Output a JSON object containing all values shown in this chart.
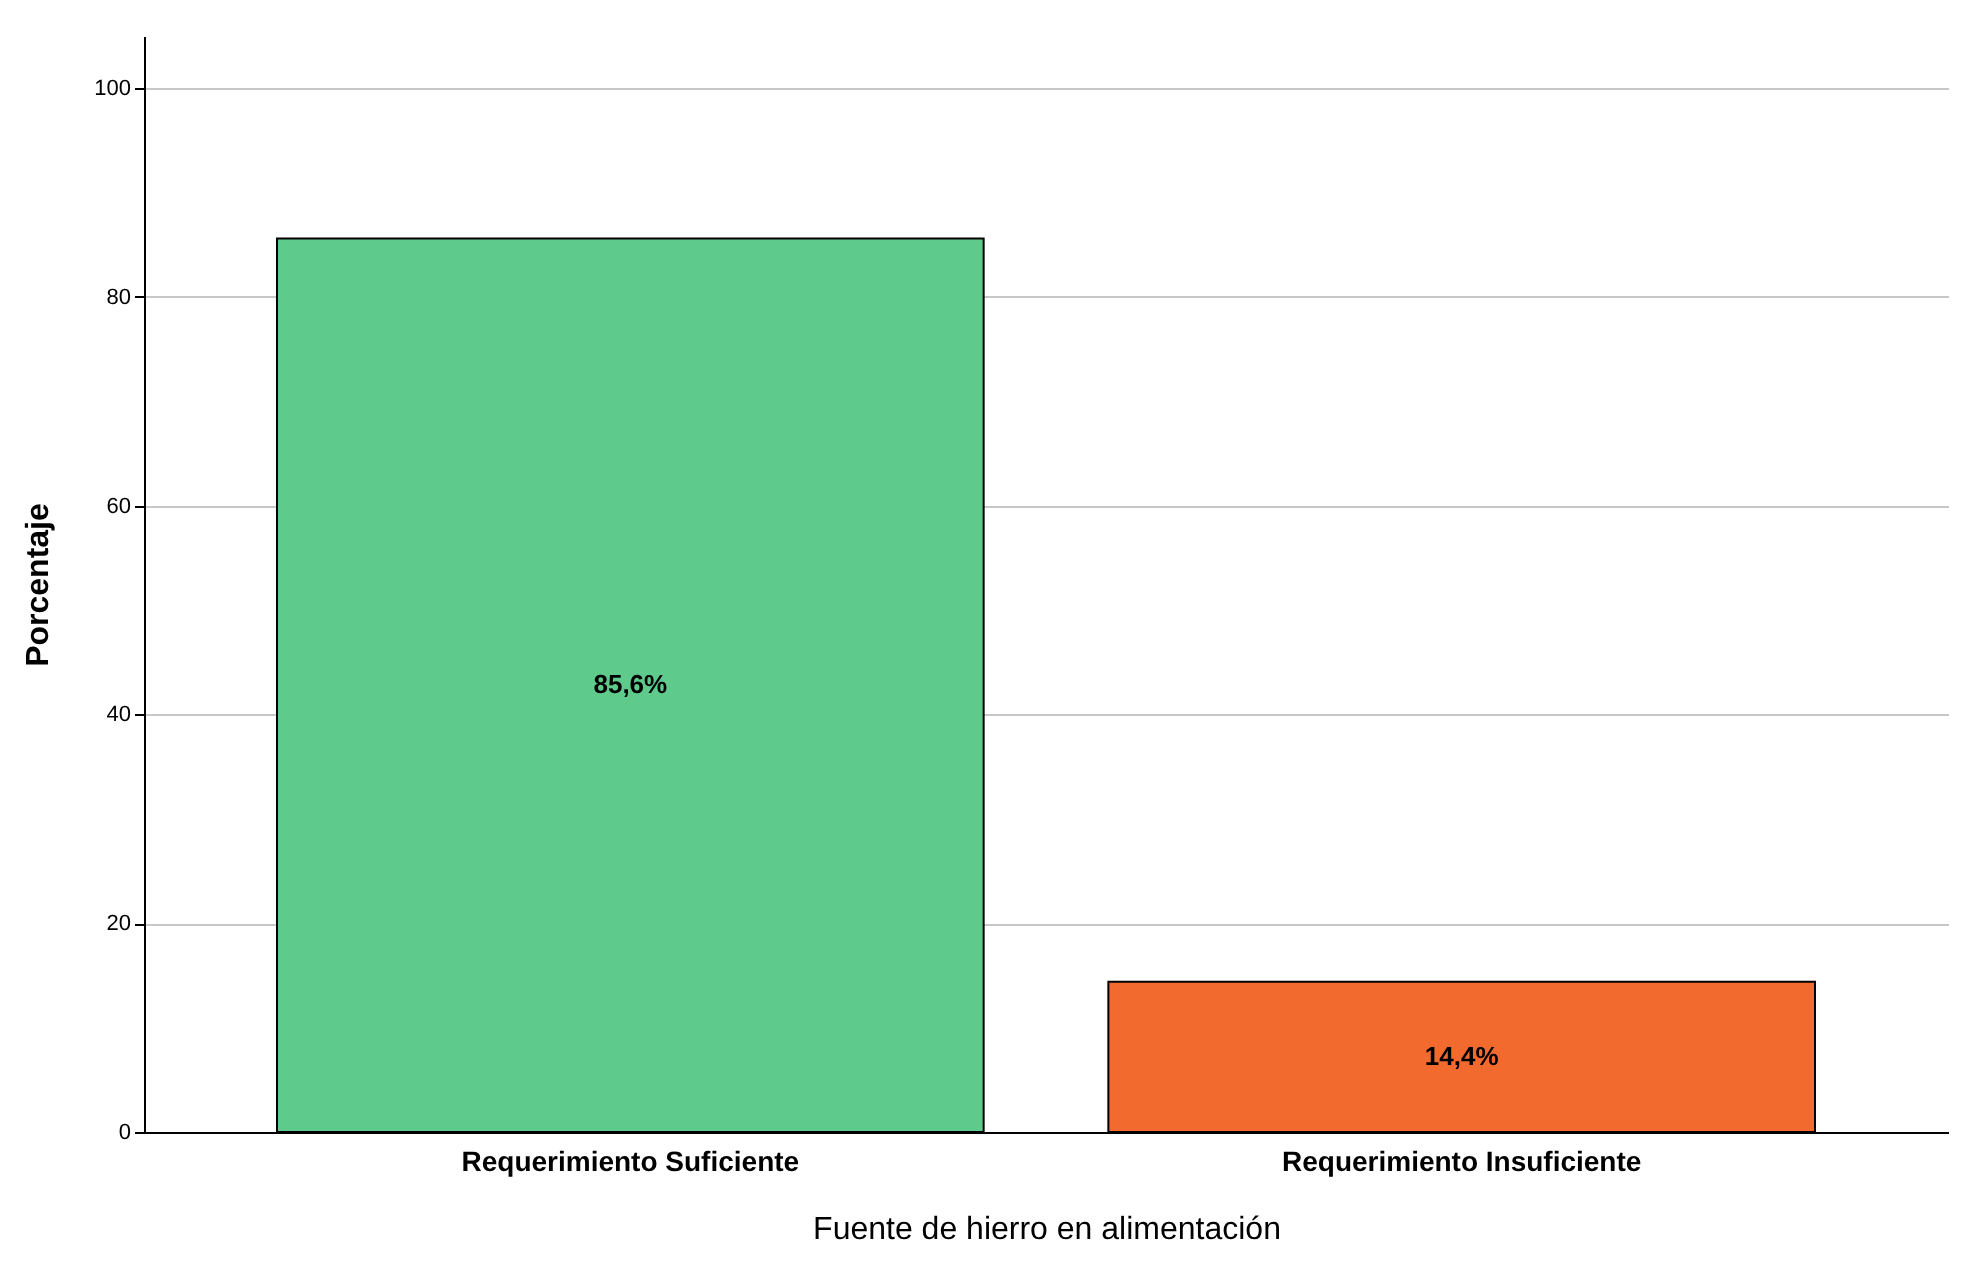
{
  "chart_data": {
    "type": "bar",
    "xlabel": "Fuente de hierro en alimentación",
    "ylabel": "Porcentaje",
    "categories": [
      "Requerimiento Suficiente",
      "Requerimiento Insuficiente"
    ],
    "values": [
      85.6,
      14.4
    ],
    "colors": [
      "#5ecb8d",
      "#f26a2e"
    ],
    "value_labels": [
      "85,6%",
      "14,4%"
    ],
    "ylim": [
      0,
      105
    ],
    "yticks": [
      0,
      20,
      40,
      60,
      80,
      100
    ],
    "grid": "y"
  }
}
